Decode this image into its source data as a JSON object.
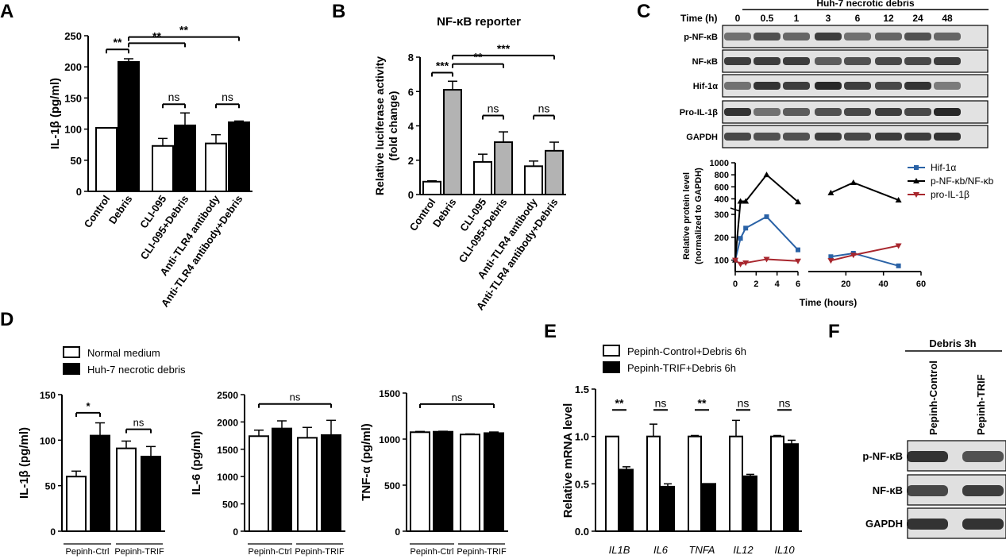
{
  "colors": {
    "axis": "#000000",
    "white_bar": "#ffffff",
    "black_bar": "#000000",
    "gray_bar": "#b3b3b3",
    "hif": "#2a62a6",
    "pnfkb": "#000000",
    "proil": "#a8262d"
  },
  "panels": {
    "A": "A",
    "B": "B",
    "C": "C",
    "D": "D",
    "E": "E",
    "F": "F"
  },
  "chart_data": [
    {
      "id": "A",
      "type": "bar",
      "ylabel": "IL-1β (pg/ml)",
      "ylim": [
        0,
        250
      ],
      "yticks": [
        "0",
        "50",
        "100",
        "150",
        "200",
        "250"
      ],
      "categories": [
        "Control",
        "Debris",
        "CLI-095",
        "CLI-095+Debris",
        "Anti-TLR4 antibody",
        "Anti-TLR4 antibody+Debris"
      ],
      "values": [
        102,
        208,
        73,
        106,
        77,
        111
      ],
      "errors": [
        0,
        5,
        12,
        20,
        14,
        2
      ],
      "fills": [
        "white",
        "black",
        "white",
        "black",
        "white",
        "black"
      ],
      "annotations": [
        {
          "from": 0,
          "to": 1,
          "text": "**",
          "y": 228
        },
        {
          "from": 1,
          "to": 3,
          "text": "**",
          "y": 238
        },
        {
          "from": 1,
          "to": 5,
          "text": "**",
          "y": 248
        },
        {
          "from": 2,
          "to": 3,
          "text": "ns",
          "y": 140
        },
        {
          "from": 4,
          "to": 5,
          "text": "ns",
          "y": 140
        }
      ]
    },
    {
      "id": "B",
      "type": "bar",
      "title": "NF-κB reporter",
      "ylabel": "Relative  luciferase activity",
      "ylabel2": "(fold change)",
      "ylim": [
        0,
        8
      ],
      "yticks": [
        "0",
        "2",
        "4",
        "6",
        "8"
      ],
      "categories": [
        "Control",
        "Debris",
        "CLI-095",
        "CLI-095+Debris",
        "Anti-TLR4 antibody",
        "Anti-TLR4 antibody+Debris"
      ],
      "values": [
        0.75,
        6.1,
        1.9,
        3.05,
        1.65,
        2.55
      ],
      "errors": [
        0.05,
        0.5,
        0.45,
        0.6,
        0.3,
        0.5
      ],
      "fills": [
        "white",
        "gray",
        "white",
        "gray",
        "white",
        "gray"
      ],
      "annotations": [
        {
          "from": 0,
          "to": 1,
          "text": "***",
          "y": 7.1
        },
        {
          "from": 1,
          "to": 3,
          "text": "**",
          "y": 7.6
        },
        {
          "from": 1,
          "to": 5,
          "text": "***",
          "y": 8.1
        },
        {
          "from": 2,
          "to": 3,
          "text": "ns",
          "y": 4.6
        },
        {
          "from": 4,
          "to": 5,
          "text": "ns",
          "y": 4.6
        }
      ]
    },
    {
      "id": "C-line",
      "type": "line",
      "xlabel": "Time (hours)",
      "ylabel": "Relative protein level",
      "ylabel2": "(normalized to GAPDH)",
      "xticks": [
        "0",
        "2",
        "4",
        "6",
        "20",
        "40",
        "60"
      ],
      "yticks": [
        "100",
        "200",
        "300",
        "400",
        "600",
        "800",
        "1000"
      ],
      "series": [
        {
          "name": "Hif-1α",
          "x": [
            0,
            0.5,
            1,
            3,
            6,
            12,
            24,
            48
          ],
          "values": [
            100,
            195,
            240,
            290,
            145,
            115,
            130,
            75
          ]
        },
        {
          "name": "p-NF-κb/NF-κb",
          "x": [
            0,
            0.5,
            1,
            3,
            6,
            12,
            24,
            48
          ],
          "values": [
            100,
            360,
            360,
            800,
            350,
            500,
            670,
            380
          ]
        },
        {
          "name": "pro-IL-1β",
          "x": [
            0,
            0.5,
            1,
            3,
            6,
            12,
            24,
            48
          ],
          "values": [
            100,
            82,
            88,
            104,
            96,
            98,
            122,
            163
          ]
        }
      ]
    },
    {
      "id": "D1",
      "type": "bar",
      "ylabel": "IL-1β (pg/ml)",
      "ylim": [
        0,
        150
      ],
      "yticks": [
        "0",
        "50",
        "100",
        "150"
      ],
      "groups": [
        "Pepinh-Ctrl",
        "Pepinh-TRIF"
      ],
      "values": [
        60,
        105,
        91,
        82
      ],
      "errors": [
        6,
        14,
        8,
        11
      ],
      "fills": [
        "white",
        "black",
        "white",
        "black"
      ],
      "annotations": [
        {
          "from": 0,
          "to": 1,
          "text": "*",
          "y": 130
        },
        {
          "from": 2,
          "to": 3,
          "text": "ns",
          "y": 112
        }
      ]
    },
    {
      "id": "D2",
      "type": "bar",
      "ylabel": "IL-6 (pg/ml)",
      "ylim": [
        0,
        2500
      ],
      "yticks": [
        "0",
        "500",
        "1000",
        "1500",
        "2000",
        "2500"
      ],
      "groups": [
        "Pepinh-Ctrl",
        "Pepinh-TRIF"
      ],
      "values": [
        1740,
        1880,
        1710,
        1760
      ],
      "errors": [
        110,
        140,
        190,
        270
      ],
      "fills": [
        "white",
        "black",
        "white",
        "black"
      ],
      "annotations": [
        {
          "from": 0,
          "to": 3,
          "text": "ns",
          "y": 2330
        }
      ]
    },
    {
      "id": "D3",
      "type": "bar",
      "ylabel": "TNF-α (pg/ml)",
      "ylim": [
        0,
        1500
      ],
      "yticks": [
        "0",
        "500",
        "1000",
        "1500"
      ],
      "groups": [
        "Pepinh-Ctrl",
        "Pepinh-TRIF"
      ],
      "values": [
        1075,
        1080,
        1050,
        1065
      ],
      "errors": [
        8,
        5,
        6,
        12
      ],
      "fills": [
        "white",
        "black",
        "white",
        "black"
      ],
      "annotations": [
        {
          "from": 0,
          "to": 3,
          "text": "ns",
          "y": 1380
        }
      ]
    },
    {
      "id": "E",
      "type": "bar",
      "ylabel": "Relative mRNA level",
      "ylim": [
        0,
        1.5
      ],
      "yticks": [
        "0.0",
        "0.5",
        "1.0",
        "1.5"
      ],
      "categories": [
        "IL1B",
        "IL6",
        "TNFA",
        "IL12",
        "IL10"
      ],
      "values": [
        [
          1.0,
          0.65
        ],
        [
          1.0,
          0.47
        ],
        [
          1.0,
          0.5
        ],
        [
          1.0,
          0.58
        ],
        [
          1.0,
          0.92
        ]
      ],
      "errors": [
        [
          0,
          0.03
        ],
        [
          0.13,
          0.03
        ],
        [
          0.01,
          0
        ],
        [
          0.17,
          0.02
        ],
        [
          0.01,
          0.04
        ]
      ],
      "annotations": [
        "**",
        "ns",
        "**",
        "ns",
        "ns"
      ]
    }
  ],
  "legends": {
    "C": [
      "Hif-1α",
      "p-NF-κb/NF-κb",
      "pro-IL-1β"
    ],
    "D": [
      "Normal medium",
      "Huh-7 necrotic debris"
    ],
    "E": [
      "Pepinh-Control+Debris 6h",
      "Pepinh-TRIF+Debris 6h"
    ]
  },
  "blot_C": {
    "header": "Huh-7 necrotic  debris",
    "time_label": "Time (h)",
    "times": [
      "0",
      "0.5",
      "1",
      "3",
      "6",
      "12",
      "24",
      "48"
    ],
    "rows": [
      "p-NF-κB",
      "NF-κB",
      "Hif-1α",
      "Pro-IL-1β",
      "GAPDH"
    ]
  },
  "blot_F": {
    "header": "Debris 3h",
    "lanes": [
      "Pepinh-Control",
      "Pepinh-TRIF"
    ],
    "rows": [
      "p-NF-κB",
      "NF-κB",
      "GAPDH"
    ]
  }
}
